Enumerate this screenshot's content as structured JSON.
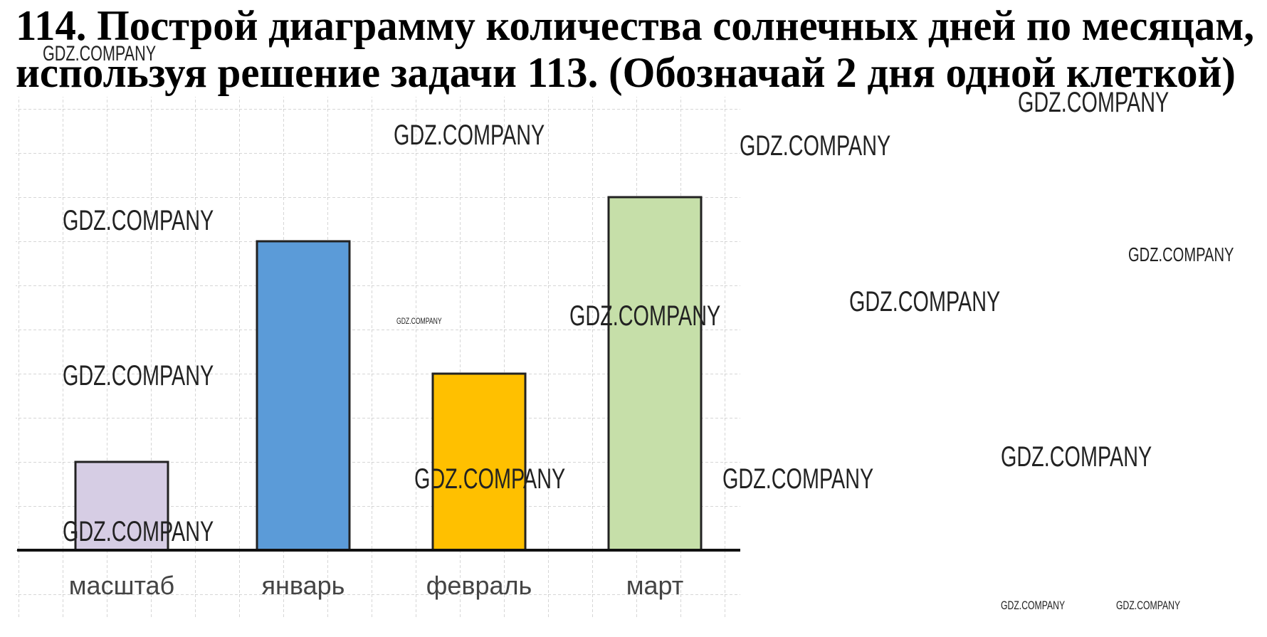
{
  "chart_data": {
    "type": "bar",
    "title": [
      "114. Построй диаграмму количества солнечных дней по месяцам,",
      "используя решение задачи 113. (Обозначай 2 дня одной клеткой)"
    ],
    "categories": [
      "масштаб",
      "январь",
      "февраль",
      "март"
    ],
    "values": [
      4,
      14,
      8,
      16
    ],
    "colors": [
      "#d6cde4",
      "#5b9bd8",
      "#ffc000",
      "#c6dfa9"
    ],
    "ylim": [
      0,
      20
    ]
  },
  "watermarks": [
    "GDZ.COMPANY",
    "GDZ.COMPANY",
    "GDZ.COMPANY",
    "GDZ.COMPANY",
    "GDZ.COMPANY",
    "GDZ.COMPANY",
    "GDZ.COMPANY",
    "GDZ.COMPANY",
    "GDZ.COMPANY",
    "GDZ.COMPANY",
    "GDZ.COMPANY",
    "GDZ.COMPANY",
    "GDZ.COMPANY",
    "GDZ.COMPANY",
    "GDZ.COMPANY",
    "GDZ.COMPANY"
  ]
}
